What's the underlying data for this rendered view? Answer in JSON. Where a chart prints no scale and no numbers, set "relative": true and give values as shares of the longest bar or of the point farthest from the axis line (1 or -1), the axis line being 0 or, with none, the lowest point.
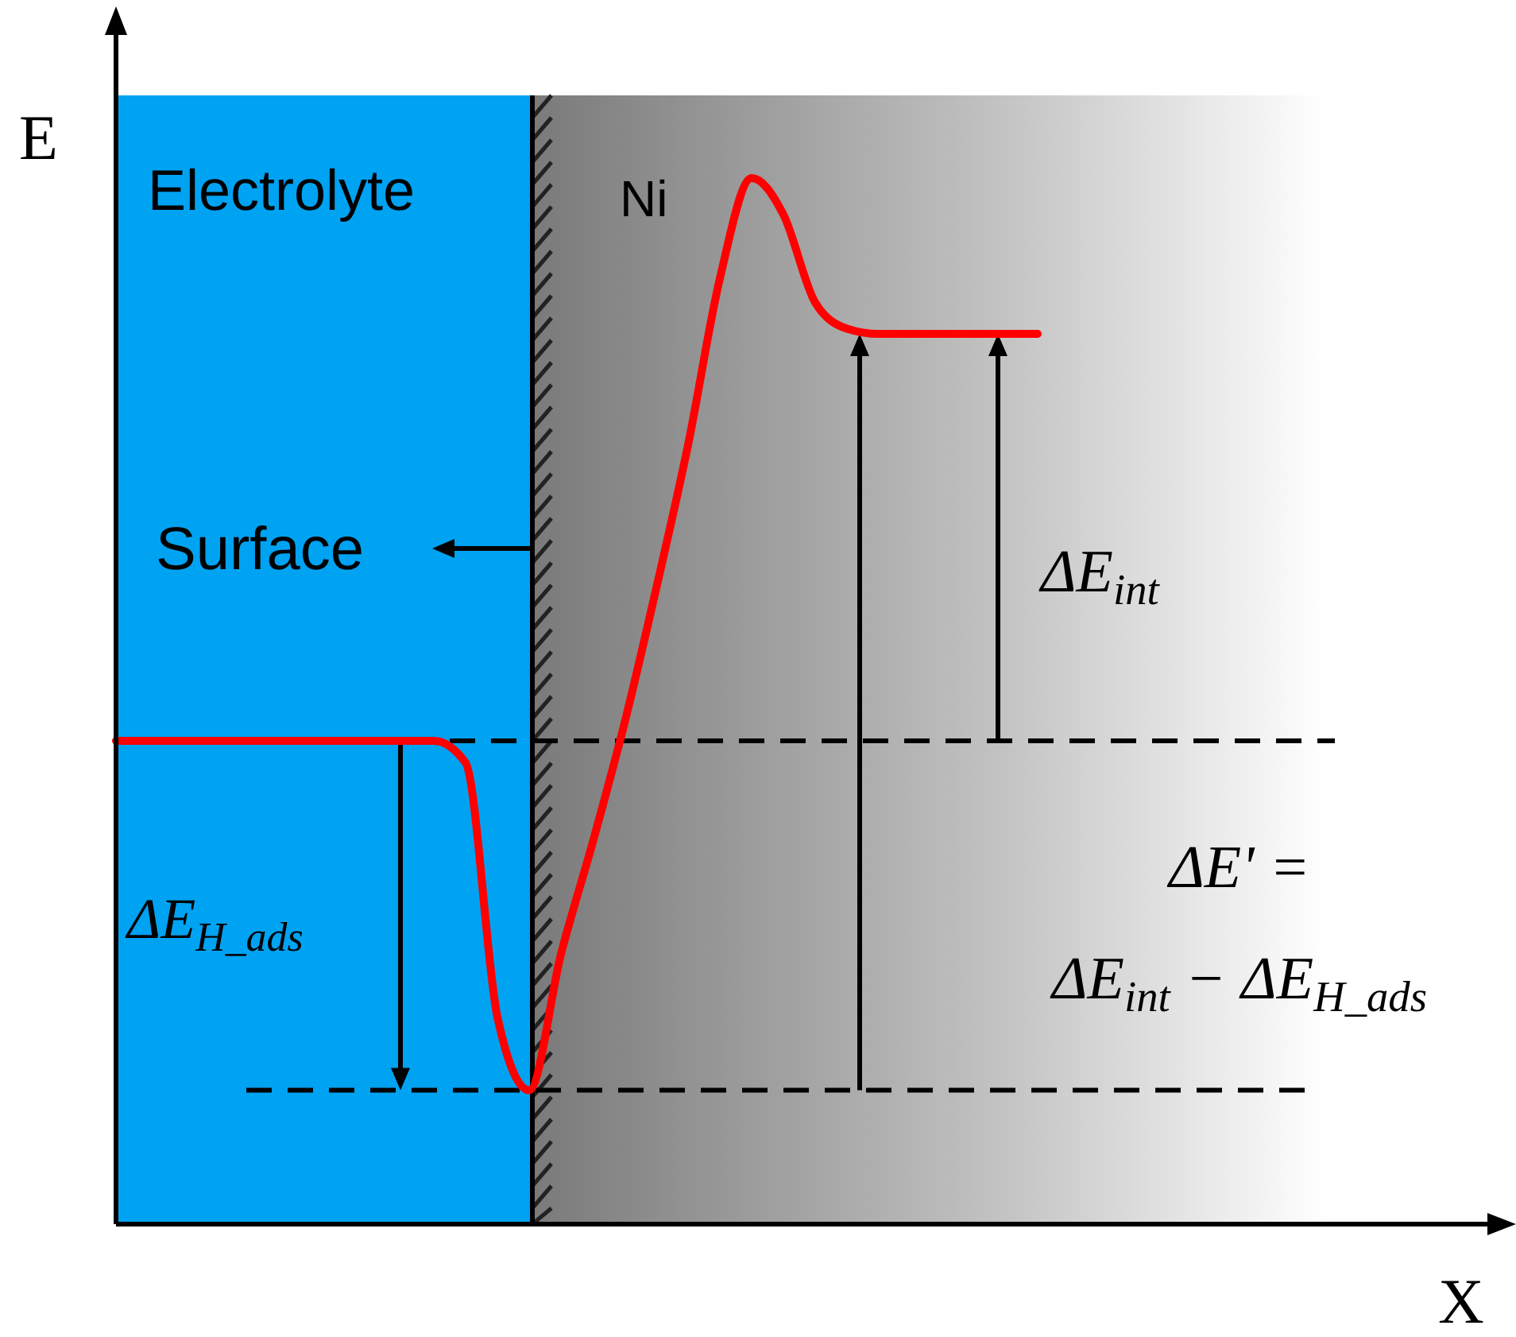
{
  "chart_data": {
    "type": "line",
    "relative": true,
    "xlabel": "X",
    "ylabel": "E",
    "categories": [
      null,
      null,
      null,
      null,
      null,
      null,
      null,
      null,
      null,
      null,
      null,
      null,
      null,
      null,
      null,
      null,
      null,
      null,
      null,
      null,
      null,
      null,
      null,
      null,
      null,
      null,
      null,
      null,
      null,
      null,
      null,
      null,
      null,
      null,
      null,
      null,
      null,
      null,
      null,
      null,
      null,
      null,
      null,
      null
    ],
    "series": [
      {
        "color": "#ff0000",
        "values": [
          0.462,
          0.462,
          0.462,
          0.462,
          0.462,
          0.462,
          0.462,
          0.462,
          0.462,
          0.462,
          0.462,
          0.441,
          0.198,
          0.128,
          0.258,
          0.365,
          0.479,
          0.608,
          0.745,
          0.904,
          1,
          0.965,
          0.881,
          0.856,
          0.851,
          0.851,
          0.851,
          0.851,
          0.851,
          0.851,
          null,
          null,
          null,
          null,
          null,
          null,
          null,
          null,
          null,
          null,
          null,
          null,
          null,
          null
        ]
      }
    ],
    "ref_lines": [
      {
        "axis": "y",
        "value": 0.462,
        "color": "#000000",
        "line_style": "dashed"
      },
      {
        "axis": "y",
        "value": 0.128,
        "color": "#000000",
        "line_style": "dashed"
      }
    ],
    "annotations": [
      "Electrolyte",
      "Ni",
      "Surface",
      "ΔE$_{H_ads}$",
      "ΔE$_{int}$",
      "ΔE' =",
      "ΔE$_{int}$ − ΔE$_{H_ads}$"
    ],
    "line_style": "solid"
  }
}
